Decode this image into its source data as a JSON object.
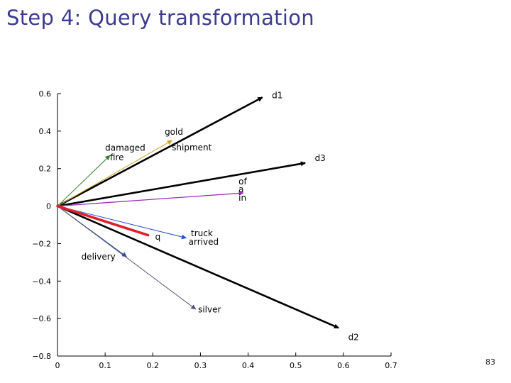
{
  "slide": {
    "title": "Step 4: Query transformation",
    "page_number": "83"
  },
  "chart_data": {
    "type": "line",
    "title": "",
    "xlabel": "",
    "ylabel": "",
    "xlim": [
      0,
      0.7
    ],
    "ylim": [
      -0.8,
      0.6
    ],
    "grid": false,
    "xticks": [
      {
        "value": 0,
        "label": "0"
      },
      {
        "value": 0.1,
        "label": "0.1"
      },
      {
        "value": 0.2,
        "label": "0.2"
      },
      {
        "value": 0.3,
        "label": "0.3"
      },
      {
        "value": 0.4,
        "label": "0.4"
      },
      {
        "value": 0.5,
        "label": "0.5"
      },
      {
        "value": 0.6,
        "label": "0.6"
      },
      {
        "value": 0.7,
        "label": "0.7"
      }
    ],
    "yticks": [
      {
        "value": 0.6,
        "label": "0.6"
      },
      {
        "value": 0.4,
        "label": "0.4"
      },
      {
        "value": 0.2,
        "label": "0.2"
      },
      {
        "value": 0,
        "label": "0"
      },
      {
        "value": -0.2,
        "label": "−0.2"
      },
      {
        "value": -0.4,
        "label": "−0.4"
      },
      {
        "value": -0.6,
        "label": "−0.6"
      },
      {
        "value": -0.8,
        "label": "−0.8"
      }
    ],
    "vectors": [
      {
        "id": "d1",
        "x": 0.43,
        "y": 0.58,
        "color": "#000000",
        "width": 2.6,
        "arrow": true
      },
      {
        "id": "d3",
        "x": 0.52,
        "y": 0.23,
        "color": "#000000",
        "width": 2.6,
        "arrow": true
      },
      {
        "id": "d2",
        "x": 0.59,
        "y": -0.65,
        "color": "#000000",
        "width": 2.6,
        "arrow": true
      },
      {
        "id": "gold-shipment",
        "x": 0.24,
        "y": 0.35,
        "color": "#c9a227",
        "width": 1.0,
        "arrow": true
      },
      {
        "id": "damaged-fire",
        "x": 0.11,
        "y": 0.27,
        "color": "#2f7d2f",
        "width": 1.0,
        "arrow": true
      },
      {
        "id": "of-a-in",
        "x": 0.39,
        "y": 0.07,
        "color": "#9b30c0",
        "width": 1.3,
        "arrow": true
      },
      {
        "id": "truck-arrived",
        "x": 0.27,
        "y": -0.17,
        "color": "#2a4fd0",
        "width": 1.0,
        "arrow": true
      },
      {
        "id": "delivery",
        "x": 0.145,
        "y": -0.27,
        "color": "#2c4ea0",
        "width": 1.0,
        "arrow": true
      },
      {
        "id": "silver",
        "x": 0.29,
        "y": -0.55,
        "color": "#555577",
        "width": 1.0,
        "arrow": true
      },
      {
        "id": "q",
        "x": 0.19,
        "y": -0.155,
        "color": "#e0202a",
        "width": 3.6,
        "arrow": false
      }
    ],
    "labels": [
      {
        "text": "d1",
        "x": 0.45,
        "y": 0.575
      },
      {
        "text": "d3",
        "x": 0.54,
        "y": 0.24
      },
      {
        "text": "d2",
        "x": 0.61,
        "y": -0.715
      },
      {
        "text": "gold",
        "x": 0.225,
        "y": 0.38
      },
      {
        "text": "shipment",
        "x": 0.24,
        "y": 0.298
      },
      {
        "text": "damaged",
        "x": 0.1,
        "y": 0.295
      },
      {
        "text": "fire",
        "x": 0.11,
        "y": 0.245
      },
      {
        "text": "of",
        "x": 0.38,
        "y": 0.115
      },
      {
        "text": "a",
        "x": 0.38,
        "y": 0.075
      },
      {
        "text": "in",
        "x": 0.38,
        "y": 0.028
      },
      {
        "text": "truck",
        "x": 0.28,
        "y": -0.16
      },
      {
        "text": "arrived",
        "x": 0.275,
        "y": -0.205
      },
      {
        "text": "q",
        "x": 0.205,
        "y": -0.18
      },
      {
        "text": "delivery",
        "x": 0.05,
        "y": -0.285
      },
      {
        "text": "silver",
        "x": 0.295,
        "y": -0.568
      }
    ]
  }
}
